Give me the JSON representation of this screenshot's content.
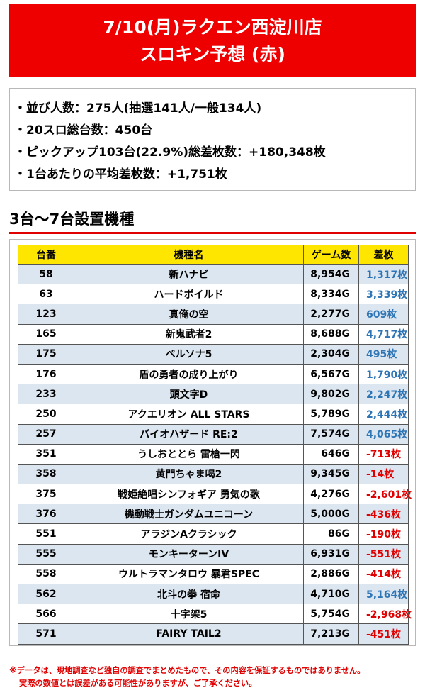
{
  "header": {
    "line1": "7/10(月)ラクエン西淀川店",
    "line2": "スロキン予想 (赤)"
  },
  "summary": [
    "・並び人数：275人(抽選141人/一般134人)",
    "・20スロ総台数：450台",
    "・ピックアップ103台(22.9%)総差枚数：+180,348枚",
    "・1台あたりの平均差枚数：+1,751枚"
  ],
  "section_title": "3台～7台設置機種",
  "table": {
    "headers": [
      "台番",
      "機種名",
      "ゲーム数",
      "差枚"
    ],
    "rows": [
      {
        "no": "58",
        "name": "新ハナビ",
        "games": "8,954G",
        "diff": "1,317枚",
        "sign": "pos"
      },
      {
        "no": "63",
        "name": "ハードボイルド",
        "games": "8,334G",
        "diff": "3,339枚",
        "sign": "pos"
      },
      {
        "no": "123",
        "name": "真俺の空",
        "games": "2,277G",
        "diff": "609枚",
        "sign": "pos"
      },
      {
        "no": "165",
        "name": "新鬼武者2",
        "games": "8,688G",
        "diff": "4,717枚",
        "sign": "pos"
      },
      {
        "no": "175",
        "name": "ペルソナ5",
        "games": "2,304G",
        "diff": "495枚",
        "sign": "pos"
      },
      {
        "no": "176",
        "name": "盾の勇者の成り上がり",
        "games": "6,567G",
        "diff": "1,790枚",
        "sign": "pos"
      },
      {
        "no": "233",
        "name": "頭文字D",
        "games": "9,802G",
        "diff": "2,247枚",
        "sign": "pos"
      },
      {
        "no": "250",
        "name": "アクエリオン ALL STARS",
        "games": "5,789G",
        "diff": "2,444枚",
        "sign": "pos"
      },
      {
        "no": "257",
        "name": "バイオハザード RE:2",
        "games": "7,574G",
        "diff": "4,065枚",
        "sign": "pos"
      },
      {
        "no": "351",
        "name": "うしおととら 雷槍一閃",
        "games": "646G",
        "diff": "-713枚",
        "sign": "neg"
      },
      {
        "no": "358",
        "name": "黄門ちゃま喝2",
        "games": "9,345G",
        "diff": "-14枚",
        "sign": "neg"
      },
      {
        "no": "375",
        "name": "戦姫絶唱シンフォギア 勇気の歌",
        "games": "4,276G",
        "diff": "-2,601枚",
        "sign": "neg"
      },
      {
        "no": "376",
        "name": "機動戦士ガンダムユニコーン",
        "games": "5,000G",
        "diff": "-436枚",
        "sign": "neg"
      },
      {
        "no": "551",
        "name": "アラジンAクラシック",
        "games": "86G",
        "diff": "-190枚",
        "sign": "neg"
      },
      {
        "no": "555",
        "name": "モンキーターンIV",
        "games": "6,931G",
        "diff": "-551枚",
        "sign": "neg"
      },
      {
        "no": "558",
        "name": "ウルトラマンタロウ 暴君SPEC",
        "games": "2,886G",
        "diff": "-414枚",
        "sign": "neg"
      },
      {
        "no": "562",
        "name": "北斗の拳 宿命",
        "games": "4,710G",
        "diff": "5,164枚",
        "sign": "pos"
      },
      {
        "no": "566",
        "name": "十字架5",
        "games": "5,754G",
        "diff": "-2,968枚",
        "sign": "neg"
      },
      {
        "no": "571",
        "name": "FAIRY TAIL2",
        "games": "7,213G",
        "diff": "-451枚",
        "sign": "neg"
      }
    ]
  },
  "notes": {
    "line1": "※データは、現地調査など独自の調査でまとめたもので、その内容を保証するものではありません。",
    "line2": "実際の数値とは誤差がある可能性がありますが、ご了承ください。"
  },
  "colors": {
    "header_bg": "#ee0000",
    "table_header_bg": "#ffe600",
    "row_alt_bg": "#dce6f1",
    "positive": "#2e75b6",
    "negative": "#e00000"
  }
}
